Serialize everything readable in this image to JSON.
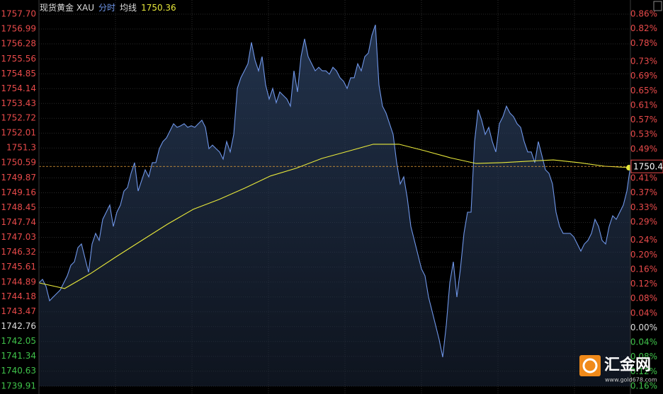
{
  "chart_data": {
    "type": "line",
    "title": "现货黄金 XAU",
    "series": [
      {
        "name": "分时",
        "color": "#6f96e8",
        "area": true,
        "values": [
          1744.85,
          1745.02,
          1744.68,
          1744.0,
          1744.17,
          1744.34,
          1744.51,
          1744.85,
          1745.19,
          1745.69,
          1745.86,
          1746.54,
          1746.71,
          1746.03,
          1745.36,
          1746.71,
          1747.22,
          1746.88,
          1747.89,
          1748.23,
          1748.57,
          1747.55,
          1748.23,
          1748.57,
          1749.24,
          1749.41,
          1750.09,
          1750.6,
          1749.24,
          1749.75,
          1750.26,
          1749.92,
          1750.6,
          1750.6,
          1751.27,
          1751.61,
          1751.78,
          1752.12,
          1752.46,
          1752.29,
          1752.36,
          1752.46,
          1752.29,
          1752.36,
          1752.29,
          1752.46,
          1752.63,
          1752.29,
          1751.27,
          1751.44,
          1751.27,
          1751.11,
          1750.77,
          1751.61,
          1751.11,
          1751.95,
          1754.15,
          1754.66,
          1754.99,
          1755.33,
          1756.35,
          1755.5,
          1754.99,
          1755.67,
          1754.32,
          1753.64,
          1754.15,
          1753.47,
          1753.98,
          1753.81,
          1753.64,
          1753.3,
          1754.99,
          1753.98,
          1755.67,
          1756.52,
          1755.67,
          1755.33,
          1754.99,
          1755.16,
          1754.99,
          1754.99,
          1754.83,
          1755.16,
          1754.99,
          1754.66,
          1754.49,
          1754.15,
          1754.66,
          1754.66,
          1755.33,
          1754.99,
          1755.67,
          1755.84,
          1756.69,
          1757.19,
          1754.32,
          1753.3,
          1752.97,
          1752.46,
          1751.95,
          1750.6,
          1749.58,
          1749.92,
          1748.91,
          1747.55,
          1746.88,
          1746.2,
          1745.52,
          1745.19,
          1744.17,
          1743.5,
          1742.82,
          1742.14,
          1741.3,
          1742.82,
          1744.85,
          1745.86,
          1744.17,
          1745.52,
          1747.22,
          1748.23,
          1748.23,
          1751.61,
          1753.13,
          1752.63,
          1751.95,
          1752.29,
          1751.61,
          1751.11,
          1752.46,
          1752.8,
          1753.3,
          1752.97,
          1752.8,
          1752.46,
          1752.29,
          1751.61,
          1751.11,
          1751.11,
          1750.6,
          1751.61,
          1750.94,
          1750.26,
          1750.09,
          1749.58,
          1748.23,
          1747.55,
          1747.22,
          1747.22,
          1747.22,
          1747.05,
          1746.71,
          1746.37,
          1746.71,
          1746.88,
          1747.22,
          1747.89,
          1747.55,
          1746.88,
          1746.71,
          1747.55,
          1748.06,
          1747.89,
          1748.23,
          1748.57,
          1749.24,
          1750.42
        ]
      },
      {
        "name": "均线",
        "color": "#e8e83a",
        "values": [
          1744.85,
          1744.58,
          1745.29,
          1746.1,
          1746.88,
          1747.66,
          1748.37,
          1748.84,
          1749.38,
          1749.96,
          1750.33,
          1750.8,
          1751.14,
          1751.48,
          1751.48,
          1751.17,
          1750.83,
          1750.56,
          1750.6,
          1750.67,
          1750.73,
          1750.6,
          1750.43,
          1750.36
        ]
      }
    ],
    "ylim": [
      1739.91,
      1757.7
    ],
    "yticks": [
      {
        "value": 1757.7,
        "label": "1757.70"
      },
      1756.99,
      1756.28,
      1755.56,
      1754.85,
      1754.14,
      1753.43,
      1752.72,
      1752.01,
      1751.3,
      1750.59,
      1749.87,
      1749.16,
      1748.45,
      1747.74,
      1747.03,
      1746.32,
      1745.61,
      1744.89,
      1744.18,
      1743.47,
      1742.76,
      1742.05,
      1741.34,
      1740.63,
      1739.91
    ],
    "y2lim": [
      -0.16,
      0.86
    ],
    "y2ticks": [
      {
        "value": 0.86,
        "label": "0.86%"
      },
      {
        "value": 0.82,
        "label": "0.82%"
      },
      {
        "value": 0.78,
        "label": "0.78%"
      },
      {
        "value": 0.73,
        "label": "0.73%"
      },
      {
        "value": 0.69,
        "label": "0.69%"
      },
      {
        "value": 0.65,
        "label": "0.65%"
      },
      {
        "value": 0.61,
        "label": "0.61%"
      },
      {
        "value": 0.57,
        "label": "0.57%"
      },
      {
        "value": 0.53,
        "label": "0.53%"
      },
      {
        "value": 0.49,
        "label": "0.49%"
      },
      {
        "value": 0.45,
        "label": "0.45%"
      },
      {
        "value": 0.41,
        "label": "0.41%"
      },
      {
        "value": 0.37,
        "label": "0.37%"
      },
      {
        "value": 0.33,
        "label": "0.33%"
      },
      {
        "value": 0.29,
        "label": "0.29%"
      },
      {
        "value": 0.24,
        "label": "0.24%"
      },
      {
        "value": 0.2,
        "label": "0.20%"
      },
      {
        "value": 0.16,
        "label": "0.16%"
      },
      {
        "value": 0.12,
        "label": "0.12%"
      },
      {
        "value": 0.08,
        "label": "0.08%"
      },
      {
        "value": 0.04,
        "label": "0.04%"
      },
      {
        "value": 0,
        "label": "0.00%"
      },
      {
        "value": -0.04,
        "label": "0.04%"
      },
      {
        "value": -0.08,
        "label": "0.08%"
      },
      {
        "value": -0.12,
        "label": "0.12%"
      },
      {
        "value": -0.16,
        "label": "0.16%"
      }
    ],
    "grid": true,
    "up_color": "#e84a4a",
    "down_color": "#3fc24a",
    "flat_color": "#dddddd",
    "watermark_title": "汇金网",
    "watermark_url": "www.gold678.com"
  }
}
